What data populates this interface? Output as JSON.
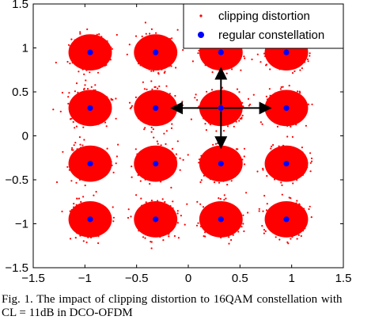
{
  "chart_data": {
    "type": "scatter",
    "title": "",
    "xlabel": "",
    "ylabel": "",
    "xlim": [
      -1.5,
      1.5
    ],
    "ylim": [
      -1.5,
      1.5
    ],
    "xticks": [
      "−1.5",
      "−1",
      "−0.5",
      "0",
      "0.5",
      "1",
      "1.5"
    ],
    "yticks": [
      "1.5",
      "1",
      "0.5",
      "0",
      "−0.5",
      "−1",
      "−1.5"
    ],
    "grid": false,
    "legend_position": "top-right",
    "series": [
      {
        "name": "clipping distortion",
        "marker": "dot",
        "color": "#ff0000",
        "description_points": "dense cloud of samples around each constellation point, spread about ±0.1",
        "spread": 0.1
      },
      {
        "name": "regular constellation",
        "marker": "circle",
        "color": "#0000ff",
        "x": [
          -0.949,
          -0.316,
          0.316,
          0.949,
          -0.949,
          -0.316,
          0.316,
          0.949,
          -0.949,
          -0.316,
          0.316,
          0.949,
          -0.949,
          -0.316,
          0.316,
          0.949
        ],
        "y": [
          0.949,
          0.949,
          0.949,
          0.949,
          0.316,
          0.316,
          0.316,
          0.316,
          -0.316,
          -0.316,
          -0.316,
          -0.316,
          -0.949,
          -0.949,
          -0.949,
          -0.949
        ]
      }
    ],
    "arrows": [
      {
        "from": [
          0.316,
          0.316
        ],
        "to": [
          0.316,
          0.949
        ]
      },
      {
        "from": [
          0.316,
          0.316
        ],
        "to": [
          0.316,
          -0.316
        ]
      },
      {
        "from": [
          0.316,
          0.316
        ],
        "to": [
          -0.316,
          0.316
        ]
      },
      {
        "from": [
          0.316,
          0.316
        ],
        "to": [
          0.949,
          0.316
        ]
      }
    ]
  },
  "caption": {
    "line1": "Fig. 1.    The impact of clipping distortion to 16QAM constellation with",
    "line2": "CL = 11dB in DCO-OFDM"
  }
}
